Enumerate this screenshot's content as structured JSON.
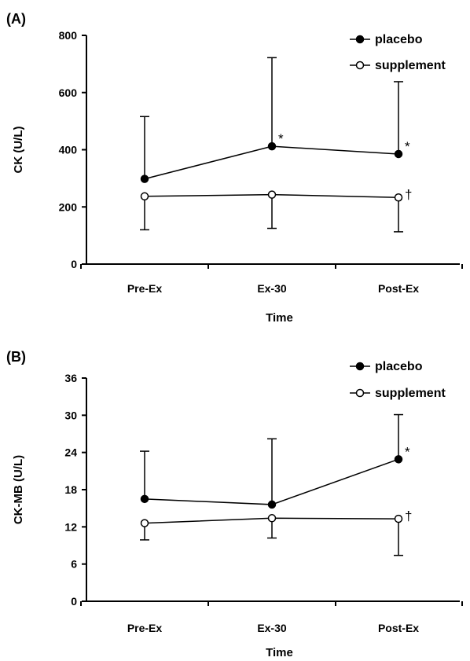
{
  "chart_data": [
    {
      "type": "line",
      "panel_label": "(A)",
      "xlabel": "Time",
      "ylabel": "CK (U/L)",
      "categories": [
        "Pre-Ex",
        "Ex-30",
        "Post-Ex"
      ],
      "ylim": [
        0,
        800
      ],
      "yticks": [
        "0",
        "200",
        "400",
        "600",
        "800"
      ],
      "legend_position": "top-right",
      "series": [
        {
          "name": "placebo",
          "marker": "filled-circle",
          "values": [
            298,
            412,
            385
          ],
          "error_plus": [
            218,
            310,
            253
          ],
          "error_minus": [
            0,
            0,
            0
          ],
          "annotations": [
            "",
            "*",
            "*"
          ]
        },
        {
          "name": "supplement",
          "marker": "open-circle",
          "values": [
            237,
            243,
            233
          ],
          "error_plus": [
            0,
            0,
            0
          ],
          "error_minus": [
            117,
            118,
            120
          ],
          "annotations": [
            "",
            "",
            "†"
          ]
        }
      ]
    },
    {
      "type": "line",
      "panel_label": "(B)",
      "xlabel": "Time",
      "ylabel": "CK-MB (U/L)",
      "categories": [
        "Pre-Ex",
        "Ex-30",
        "Post-Ex"
      ],
      "ylim": [
        0,
        36
      ],
      "yticks": [
        "0",
        "6",
        "12",
        "18",
        "24",
        "30",
        "36"
      ],
      "legend_position": "top-right",
      "series": [
        {
          "name": "placebo",
          "marker": "filled-circle",
          "values": [
            16.5,
            15.6,
            22.9
          ],
          "error_plus": [
            7.7,
            10.6,
            7.2
          ],
          "error_minus": [
            0,
            0,
            0
          ],
          "annotations": [
            "",
            "",
            "*"
          ]
        },
        {
          "name": "supplement",
          "marker": "open-circle",
          "values": [
            12.6,
            13.4,
            13.3
          ],
          "error_plus": [
            0,
            0,
            0
          ],
          "error_minus": [
            2.7,
            3.2,
            5.9
          ],
          "annotations": [
            "",
            "",
            "†"
          ]
        }
      ]
    }
  ]
}
